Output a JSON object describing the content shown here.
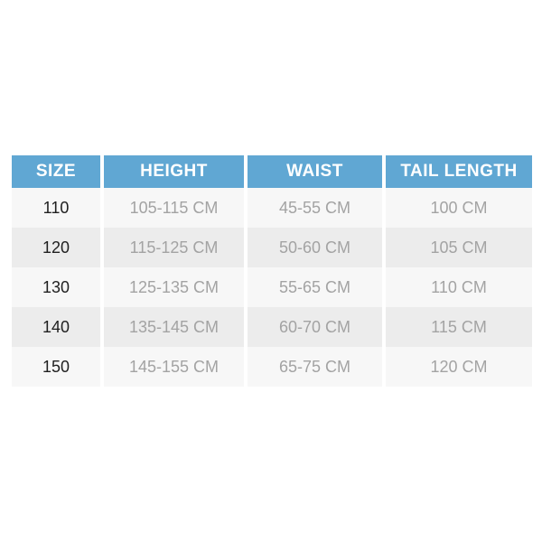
{
  "chart_data": {
    "type": "table",
    "title": "",
    "columns": [
      "SIZE",
      "HEIGHT",
      "WAIST",
      "TAIL LENGTH"
    ],
    "rows": [
      [
        "110",
        "105-115 CM",
        "45-55 CM",
        "100 CM"
      ],
      [
        "120",
        "115-125 CM",
        "50-60 CM",
        "105 CM"
      ],
      [
        "130",
        "125-135 CM",
        "55-65 CM",
        "110 CM"
      ],
      [
        "140",
        "135-145 CM",
        "60-70 CM",
        "115 CM"
      ],
      [
        "150",
        "145-155 CM",
        "65-75 CM",
        "120 CM"
      ]
    ],
    "layout": {
      "header_position": "top",
      "zebra_striping": true,
      "column_separators": "white-gaps"
    }
  },
  "colors": {
    "header_background": "#60a7d3",
    "header_text": "#ffffff",
    "row_light": "#f7f7f7",
    "row_dark": "#ececec",
    "size_text": "#1f1f1f",
    "value_text": "#a3a3a3",
    "canvas_background": "#ffffff"
  }
}
